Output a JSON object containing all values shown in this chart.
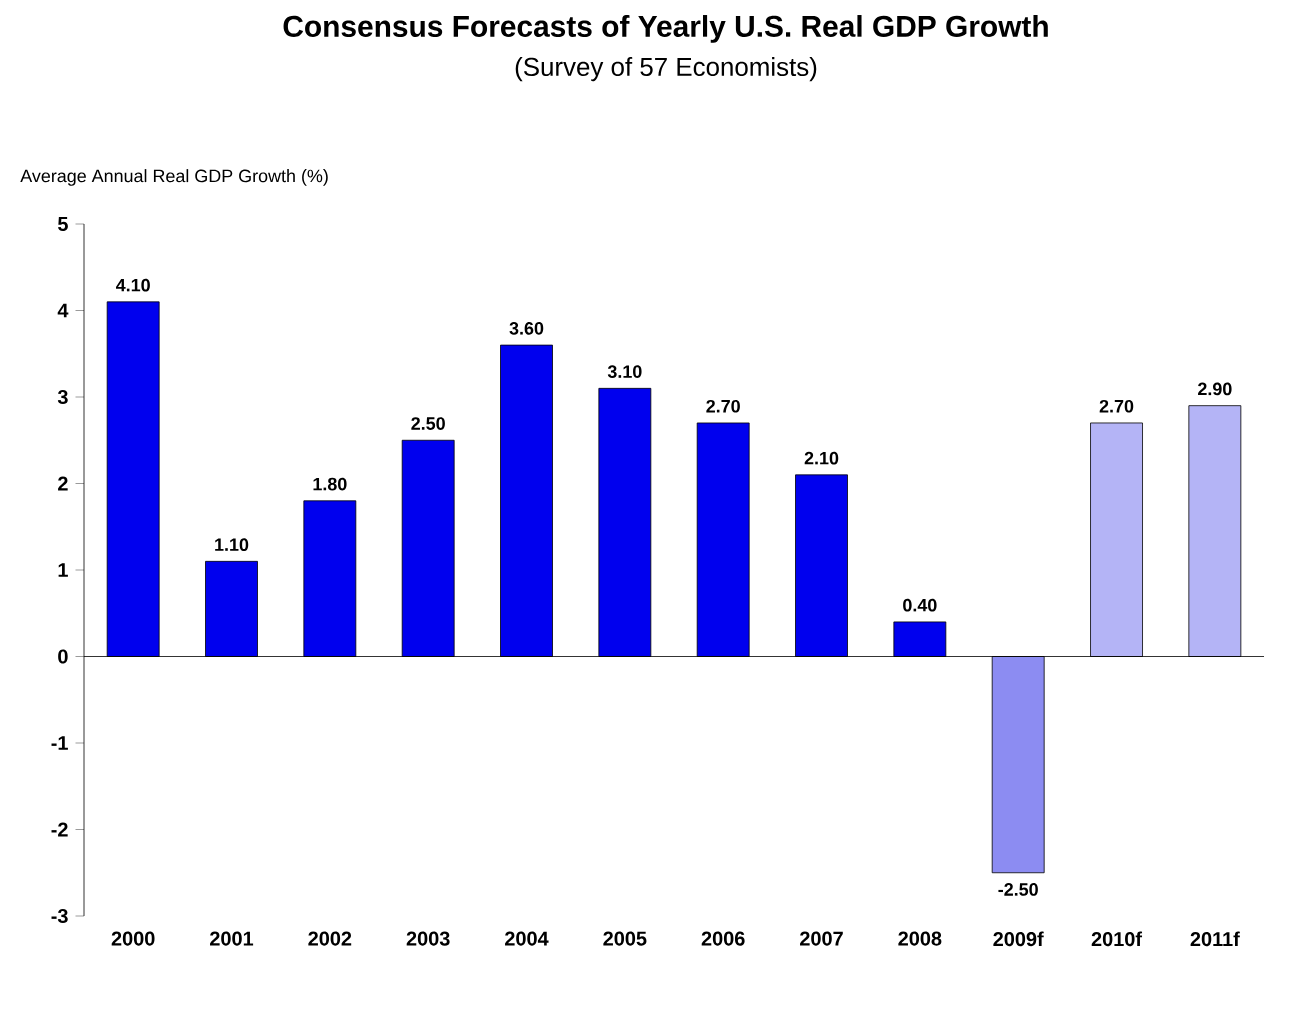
{
  "chart_data": {
    "type": "bar",
    "title": "Consensus Forecasts of Yearly U.S. Real GDP Growth",
    "subtitle": "(Survey of 57 Economists)",
    "ylabel": "Average Annual Real GDP Growth (%)",
    "categories": [
      "2000",
      "2001",
      "2002",
      "2003",
      "2004",
      "2005",
      "2006",
      "2007",
      "2008",
      "2009f",
      "2010f",
      "2011f"
    ],
    "values": [
      4.1,
      1.1,
      1.8,
      2.5,
      3.6,
      3.1,
      2.7,
      2.1,
      0.4,
      -2.5,
      2.7,
      2.9
    ],
    "value_labels": [
      "4.10",
      "1.10",
      "1.80",
      "2.50",
      "3.60",
      "3.10",
      "2.70",
      "2.10",
      "0.40",
      "-2.50",
      "2.70",
      "2.90"
    ],
    "colors": [
      "#0000ee",
      "#0000ee",
      "#0000ee",
      "#0000ee",
      "#0000ee",
      "#0000ee",
      "#0000ee",
      "#0000ee",
      "#0000ee",
      "#8c8cf2",
      "#b4b4f6",
      "#b4b4f6"
    ],
    "ylim": [
      -3,
      5
    ],
    "yticks": [
      -3,
      -2,
      -1,
      0,
      1,
      2,
      3,
      4,
      5
    ]
  }
}
